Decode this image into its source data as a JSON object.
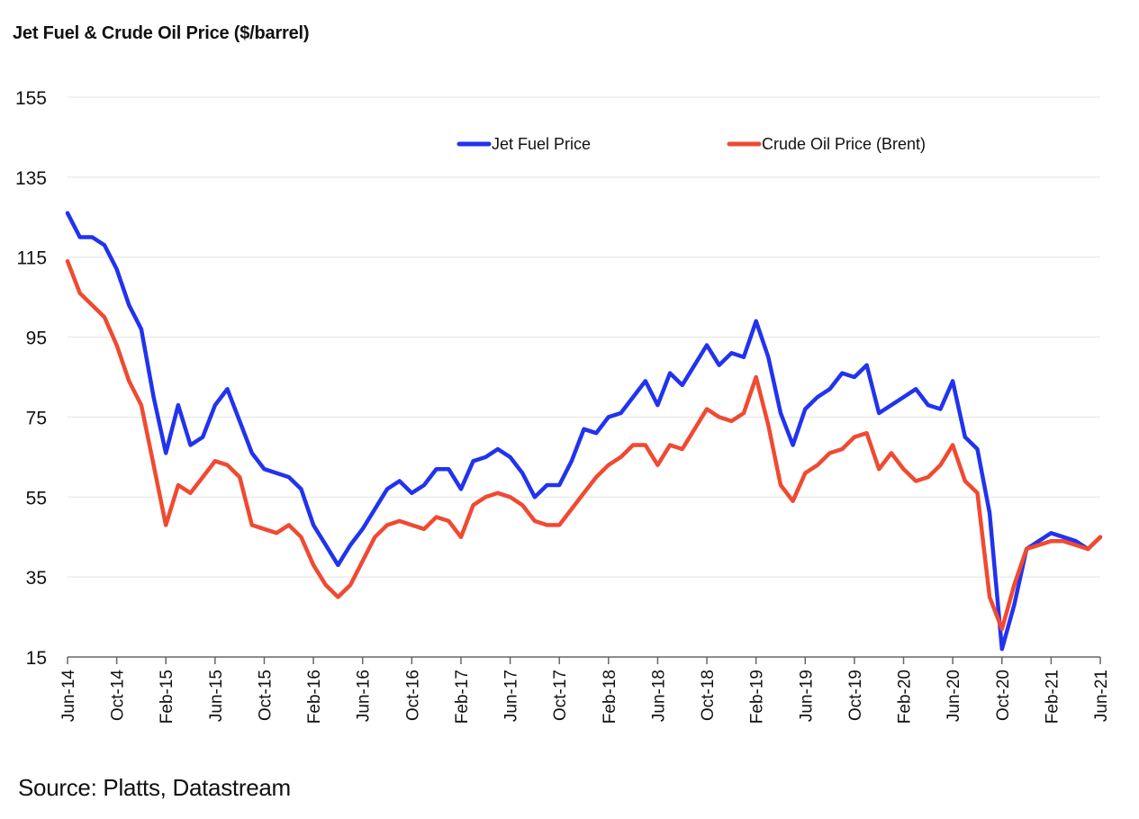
{
  "chart_data": {
    "type": "line",
    "title": "Jet Fuel & Crude Oil Price ($/barrel)",
    "xlabel": "",
    "ylabel": "",
    "source": "Source: Platts, Datastream",
    "ylim": [
      15,
      155
    ],
    "yticks": [
      15,
      35,
      55,
      75,
      95,
      115,
      135,
      155
    ],
    "grid": true,
    "legend_position": "top-center",
    "x_start": "Jun-14",
    "x_end": "Jun-21",
    "x_frequency": "monthly",
    "xticks": [
      "Jun-14",
      "Oct-14",
      "Feb-15",
      "Jun-15",
      "Oct-15",
      "Feb-16",
      "Jun-16",
      "Oct-16",
      "Feb-17",
      "Jun-17",
      "Oct-17",
      "Feb-18",
      "Jun-18",
      "Oct-18",
      "Feb-19",
      "Jun-19",
      "Oct-19",
      "Feb-20",
      "Jun-20",
      "Oct-20",
      "Feb-21",
      "Jun-21"
    ],
    "series": [
      {
        "name": "Jet Fuel Price",
        "color": "#2233ee",
        "values": [
          126,
          120,
          120,
          118,
          112,
          103,
          97,
          80,
          66,
          78,
          68,
          70,
          78,
          82,
          74,
          66,
          62,
          61,
          60,
          57,
          48,
          43,
          38,
          43,
          47,
          52,
          57,
          59,
          56,
          58,
          62,
          62,
          57,
          64,
          65,
          67,
          65,
          61,
          55,
          58,
          58,
          64,
          72,
          71,
          75,
          76,
          80,
          84,
          78,
          86,
          83,
          88,
          93,
          88,
          91,
          90,
          99,
          90,
          76,
          68,
          77,
          80,
          82,
          86,
          85,
          88,
          76,
          78,
          80,
          82,
          78,
          77,
          84,
          70,
          67,
          51,
          17,
          28,
          42,
          44,
          46,
          45,
          44,
          42,
          45
        ]
      },
      {
        "name": "Crude Oil Price (Brent)",
        "color": "#f04a32",
        "values": [
          114,
          106,
          103,
          100,
          93,
          84,
          78,
          63,
          48,
          58,
          56,
          60,
          64,
          63,
          60,
          48,
          47,
          46,
          48,
          45,
          38,
          33,
          30,
          33,
          39,
          45,
          48,
          49,
          48,
          47,
          50,
          49,
          45,
          53,
          55,
          56,
          55,
          53,
          49,
          48,
          48,
          52,
          56,
          60,
          63,
          65,
          68,
          68,
          63,
          68,
          67,
          72,
          77,
          75,
          74,
          76,
          85,
          73,
          58,
          54,
          61,
          63,
          66,
          67,
          70,
          71,
          62,
          66,
          62,
          59,
          60,
          63,
          68,
          59,
          56,
          30,
          22,
          33,
          42,
          43,
          44,
          44,
          43,
          42,
          45
        ]
      }
    ]
  }
}
